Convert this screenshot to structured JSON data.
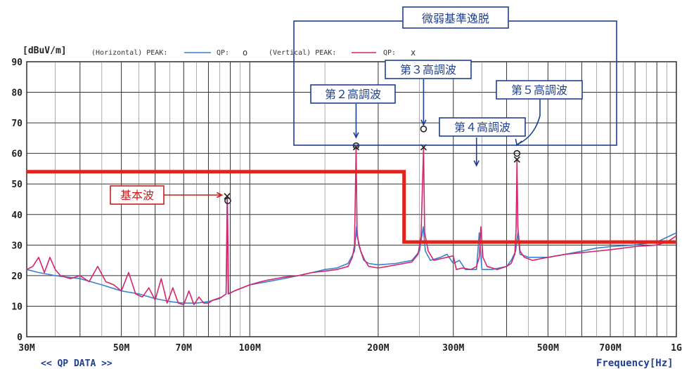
{
  "chart_data": {
    "type": "line",
    "ylabel": "[dBuV/m]",
    "xlabel": "Frequency[Hz]",
    "footer": "<< QP DATA >>",
    "x_scale": "log",
    "xlim": [
      30,
      1000
    ],
    "ylim": [
      0,
      90
    ],
    "grid": true,
    "x_ticks": [
      {
        "value": 30,
        "label": "30M"
      },
      {
        "value": 50,
        "label": "50M"
      },
      {
        "value": 70,
        "label": "70M"
      },
      {
        "value": 100,
        "label": "100M"
      },
      {
        "value": 200,
        "label": "200M"
      },
      {
        "value": 300,
        "label": "300M"
      },
      {
        "value": 500,
        "label": "500M"
      },
      {
        "value": 700,
        "label": "700M"
      },
      {
        "value": 1000,
        "label": "1G"
      }
    ],
    "y_ticks": [
      0,
      10,
      20,
      30,
      40,
      50,
      60,
      70,
      80,
      90
    ],
    "legend": {
      "horizontal_label": "(Horizontal) PEAK:",
      "qp_label": "QP:",
      "qp_h_symbol": "o",
      "vertical_label": "(Vertical) PEAK:",
      "qp_v_symbol": "x"
    },
    "limit_line": {
      "color": "#e0241b",
      "points": [
        [
          30,
          54
        ],
        [
          230,
          54
        ],
        [
          230,
          31
        ],
        [
          1000,
          31
        ]
      ]
    },
    "series": [
      {
        "id": "horizontal-peak",
        "color": "#3a7fd0",
        "points": [
          [
            30,
            22
          ],
          [
            32,
            21
          ],
          [
            35,
            20
          ],
          [
            40,
            19
          ],
          [
            45,
            17
          ],
          [
            50,
            15
          ],
          [
            55,
            14
          ],
          [
            60,
            12.5
          ],
          [
            65,
            11.5
          ],
          [
            70,
            11
          ],
          [
            75,
            11
          ],
          [
            80,
            11.5
          ],
          [
            85,
            12.5
          ],
          [
            88,
            14
          ],
          [
            88.5,
            46
          ],
          [
            89,
            14
          ],
          [
            92,
            15
          ],
          [
            100,
            17
          ],
          [
            110,
            18
          ],
          [
            120,
            19
          ],
          [
            130,
            20
          ],
          [
            140,
            21
          ],
          [
            150,
            22
          ],
          [
            160,
            22.5
          ],
          [
            170,
            24
          ],
          [
            176,
            28
          ],
          [
            178,
            36
          ],
          [
            180,
            30
          ],
          [
            185,
            25
          ],
          [
            190,
            24
          ],
          [
            200,
            23.5
          ],
          [
            220,
            24
          ],
          [
            240,
            25
          ],
          [
            250,
            28
          ],
          [
            255,
            36
          ],
          [
            258,
            28
          ],
          [
            265,
            25
          ],
          [
            280,
            26
          ],
          [
            290,
            27
          ],
          [
            300,
            24
          ],
          [
            310,
            25
          ],
          [
            320,
            22
          ],
          [
            340,
            22
          ],
          [
            345,
            34
          ],
          [
            350,
            22
          ],
          [
            370,
            22
          ],
          [
            400,
            23
          ],
          [
            410,
            25
          ],
          [
            420,
            28
          ],
          [
            425,
            34
          ],
          [
            430,
            27
          ],
          [
            450,
            26
          ],
          [
            500,
            26
          ],
          [
            550,
            27
          ],
          [
            600,
            28
          ],
          [
            650,
            29
          ],
          [
            700,
            29.5
          ],
          [
            800,
            30
          ],
          [
            900,
            31
          ],
          [
            1000,
            34
          ]
        ]
      },
      {
        "id": "vertical-peak",
        "color": "#d6246e",
        "points": [
          [
            30,
            22
          ],
          [
            31,
            23
          ],
          [
            32,
            26
          ],
          [
            33,
            21
          ],
          [
            34,
            26
          ],
          [
            35,
            22
          ],
          [
            36,
            20
          ],
          [
            38,
            19
          ],
          [
            40,
            20
          ],
          [
            42,
            18
          ],
          [
            44,
            23
          ],
          [
            46,
            18
          ],
          [
            48,
            17
          ],
          [
            50,
            15
          ],
          [
            52,
            21
          ],
          [
            54,
            14
          ],
          [
            56,
            13
          ],
          [
            58,
            16
          ],
          [
            60,
            12
          ],
          [
            62,
            19
          ],
          [
            64,
            11
          ],
          [
            66,
            16
          ],
          [
            68,
            11
          ],
          [
            70,
            10.5
          ],
          [
            72,
            15
          ],
          [
            74,
            10.5
          ],
          [
            76,
            13
          ],
          [
            78,
            11
          ],
          [
            80,
            11
          ],
          [
            82,
            12
          ],
          [
            84,
            12.5
          ],
          [
            86,
            13
          ],
          [
            88,
            14
          ],
          [
            88.6,
            45
          ],
          [
            89.2,
            14
          ],
          [
            92,
            15
          ],
          [
            96,
            16
          ],
          [
            100,
            17
          ],
          [
            106,
            18
          ],
          [
            110,
            18.5
          ],
          [
            120,
            19.5
          ],
          [
            130,
            20
          ],
          [
            140,
            21
          ],
          [
            150,
            21.5
          ],
          [
            160,
            22
          ],
          [
            170,
            23
          ],
          [
            174,
            26
          ],
          [
            176,
            30
          ],
          [
            177.5,
            62
          ],
          [
            178.5,
            33
          ],
          [
            182,
            28
          ],
          [
            186,
            25
          ],
          [
            190,
            23
          ],
          [
            200,
            22.5
          ],
          [
            210,
            23
          ],
          [
            220,
            23.5
          ],
          [
            230,
            24
          ],
          [
            240,
            24.5
          ],
          [
            248,
            27
          ],
          [
            252,
            33
          ],
          [
            255.5,
            62
          ],
          [
            257,
            34
          ],
          [
            262,
            28
          ],
          [
            270,
            25
          ],
          [
            280,
            25.5
          ],
          [
            290,
            26
          ],
          [
            300,
            26.5
          ],
          [
            305,
            22
          ],
          [
            315,
            22.5
          ],
          [
            330,
            22
          ],
          [
            340,
            23
          ],
          [
            345,
            26
          ],
          [
            348,
            36
          ],
          [
            352,
            26
          ],
          [
            360,
            23
          ],
          [
            380,
            22
          ],
          [
            400,
            23
          ],
          [
            410,
            24
          ],
          [
            418,
            27
          ],
          [
            421,
            35
          ],
          [
            423,
            58
          ],
          [
            425,
            36
          ],
          [
            430,
            28
          ],
          [
            440,
            26
          ],
          [
            460,
            25
          ],
          [
            480,
            25.5
          ],
          [
            500,
            26
          ],
          [
            550,
            27
          ],
          [
            600,
            27.5
          ],
          [
            650,
            28
          ],
          [
            700,
            28.5
          ],
          [
            750,
            29
          ],
          [
            800,
            29.5
          ],
          [
            900,
            30
          ],
          [
            950,
            31
          ],
          [
            1000,
            33
          ]
        ]
      }
    ],
    "qp_markers": [
      {
        "x": 88.5,
        "y": 46,
        "symbol": "x"
      },
      {
        "x": 88.8,
        "y": 44.5,
        "symbol": "o"
      },
      {
        "x": 177.5,
        "y": 62.5,
        "symbol": "o"
      },
      {
        "x": 177.5,
        "y": 62,
        "symbol": "x"
      },
      {
        "x": 255.5,
        "y": 68,
        "symbol": "o"
      },
      {
        "x": 255.5,
        "y": 62,
        "symbol": "x"
      },
      {
        "x": 423,
        "y": 60,
        "symbol": "o"
      },
      {
        "x": 423,
        "y": 58,
        "symbol": "x"
      }
    ],
    "annotations": {
      "fundamental": {
        "label": "基本波",
        "x": 88,
        "y": 46
      },
      "h2": {
        "label": "第２高調波",
        "x": 177.5,
        "y": 66
      },
      "h3": {
        "label": "第３高調波",
        "x": 255.5,
        "y": 70
      },
      "h4": {
        "label": "第４高調波",
        "x": 340,
        "y": 56
      },
      "h5": {
        "label": "第５高調波",
        "x": 423,
        "y": 64
      },
      "group": {
        "label": "微弱基準逸脱"
      }
    }
  }
}
